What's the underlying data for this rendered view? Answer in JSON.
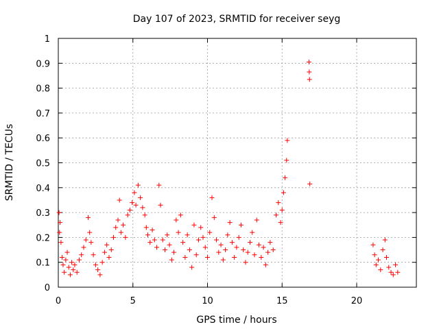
{
  "chart_data": {
    "type": "scatter",
    "title": "Day 107 of 2023, SRMTID for receiver seyg",
    "xlabel": "GPS time / hours",
    "ylabel": "SRMTID / TECUs",
    "xlim": [
      0,
      24
    ],
    "ylim": [
      0,
      1
    ],
    "xticks": [
      0,
      5,
      10,
      15,
      20
    ],
    "xtick_labels": [
      "0",
      "5",
      "10",
      "15",
      "20"
    ],
    "yticks": [
      0,
      0.1,
      0.2,
      0.3,
      0.4,
      0.5,
      0.6,
      0.7,
      0.8,
      0.9,
      1
    ],
    "ytick_labels": [
      "0",
      "0.1",
      "0.2",
      "0.3",
      "0.4",
      "0.5",
      "0.6",
      "0.7",
      "0.8",
      "0.9",
      "1"
    ],
    "grid": true,
    "marker": "+",
    "color": "#ff0000",
    "series": [
      {
        "name": "SRMTID",
        "points": [
          [
            0.05,
            0.3
          ],
          [
            0.08,
            0.22
          ],
          [
            0.12,
            0.26
          ],
          [
            0.18,
            0.18
          ],
          [
            0.25,
            0.12
          ],
          [
            0.32,
            0.09
          ],
          [
            0.4,
            0.06
          ],
          [
            0.5,
            0.11
          ],
          [
            0.6,
            0.14
          ],
          [
            0.7,
            0.08
          ],
          [
            0.8,
            0.05
          ],
          [
            0.9,
            0.1
          ],
          [
            1.0,
            0.07
          ],
          [
            1.1,
            0.09
          ],
          [
            1.25,
            0.06
          ],
          [
            1.4,
            0.11
          ],
          [
            1.55,
            0.13
          ],
          [
            1.7,
            0.16
          ],
          [
            1.85,
            0.19
          ],
          [
            2.0,
            0.28
          ],
          [
            2.1,
            0.22
          ],
          [
            2.2,
            0.18
          ],
          [
            2.35,
            0.13
          ],
          [
            2.5,
            0.09
          ],
          [
            2.65,
            0.07
          ],
          [
            2.8,
            0.05
          ],
          [
            2.95,
            0.1
          ],
          [
            3.1,
            0.14
          ],
          [
            3.25,
            0.17
          ],
          [
            3.4,
            0.12
          ],
          [
            3.55,
            0.15
          ],
          [
            3.7,
            0.2
          ],
          [
            3.85,
            0.24
          ],
          [
            4.0,
            0.27
          ],
          [
            4.1,
            0.35
          ],
          [
            4.2,
            0.22
          ],
          [
            4.35,
            0.25
          ],
          [
            4.5,
            0.2
          ],
          [
            4.65,
            0.29
          ],
          [
            4.8,
            0.31
          ],
          [
            4.95,
            0.34
          ],
          [
            5.1,
            0.38
          ],
          [
            5.2,
            0.33
          ],
          [
            5.35,
            0.41
          ],
          [
            5.5,
            0.36
          ],
          [
            5.65,
            0.32
          ],
          [
            5.8,
            0.29
          ],
          [
            5.9,
            0.24
          ],
          [
            6.0,
            0.21
          ],
          [
            6.15,
            0.18
          ],
          [
            6.3,
            0.23
          ],
          [
            6.45,
            0.19
          ],
          [
            6.6,
            0.16
          ],
          [
            6.75,
            0.41
          ],
          [
            6.85,
            0.33
          ],
          [
            7.0,
            0.19
          ],
          [
            7.15,
            0.15
          ],
          [
            7.3,
            0.21
          ],
          [
            7.45,
            0.17
          ],
          [
            7.6,
            0.11
          ],
          [
            7.75,
            0.14
          ],
          [
            7.9,
            0.27
          ],
          [
            8.05,
            0.22
          ],
          [
            8.2,
            0.29
          ],
          [
            8.35,
            0.18
          ],
          [
            8.5,
            0.12
          ],
          [
            8.65,
            0.21
          ],
          [
            8.8,
            0.15
          ],
          [
            8.95,
            0.08
          ],
          [
            9.1,
            0.25
          ],
          [
            9.25,
            0.13
          ],
          [
            9.4,
            0.19
          ],
          [
            9.55,
            0.24
          ],
          [
            9.7,
            0.2
          ],
          [
            9.85,
            0.16
          ],
          [
            10.0,
            0.12
          ],
          [
            10.15,
            0.22
          ],
          [
            10.3,
            0.36
          ],
          [
            10.45,
            0.28
          ],
          [
            10.6,
            0.19
          ],
          [
            10.75,
            0.14
          ],
          [
            10.9,
            0.17
          ],
          [
            11.05,
            0.11
          ],
          [
            11.2,
            0.15
          ],
          [
            11.35,
            0.21
          ],
          [
            11.5,
            0.26
          ],
          [
            11.65,
            0.18
          ],
          [
            11.8,
            0.12
          ],
          [
            11.95,
            0.16
          ],
          [
            12.1,
            0.2
          ],
          [
            12.25,
            0.25
          ],
          [
            12.4,
            0.15
          ],
          [
            12.55,
            0.1
          ],
          [
            12.7,
            0.14
          ],
          [
            12.85,
            0.18
          ],
          [
            13.0,
            0.22
          ],
          [
            13.15,
            0.13
          ],
          [
            13.3,
            0.27
          ],
          [
            13.45,
            0.17
          ],
          [
            13.6,
            0.12
          ],
          [
            13.75,
            0.16
          ],
          [
            13.9,
            0.09
          ],
          [
            14.05,
            0.14
          ],
          [
            14.2,
            0.18
          ],
          [
            14.4,
            0.15
          ],
          [
            14.6,
            0.29
          ],
          [
            14.75,
            0.34
          ],
          [
            14.9,
            0.26
          ],
          [
            15.0,
            0.31
          ],
          [
            15.1,
            0.38
          ],
          [
            15.2,
            0.44
          ],
          [
            15.3,
            0.51
          ],
          [
            15.35,
            0.59
          ],
          [
            16.8,
            0.905
          ],
          [
            16.82,
            0.865
          ],
          [
            16.84,
            0.835
          ],
          [
            16.86,
            0.415
          ],
          [
            21.1,
            0.17
          ],
          [
            21.2,
            0.13
          ],
          [
            21.3,
            0.09
          ],
          [
            21.45,
            0.11
          ],
          [
            21.6,
            0.07
          ],
          [
            21.75,
            0.15
          ],
          [
            21.9,
            0.19
          ],
          [
            22.0,
            0.12
          ],
          [
            22.15,
            0.08
          ],
          [
            22.3,
            0.06
          ],
          [
            22.45,
            0.05
          ],
          [
            22.6,
            0.09
          ],
          [
            22.75,
            0.06
          ]
        ]
      }
    ]
  }
}
